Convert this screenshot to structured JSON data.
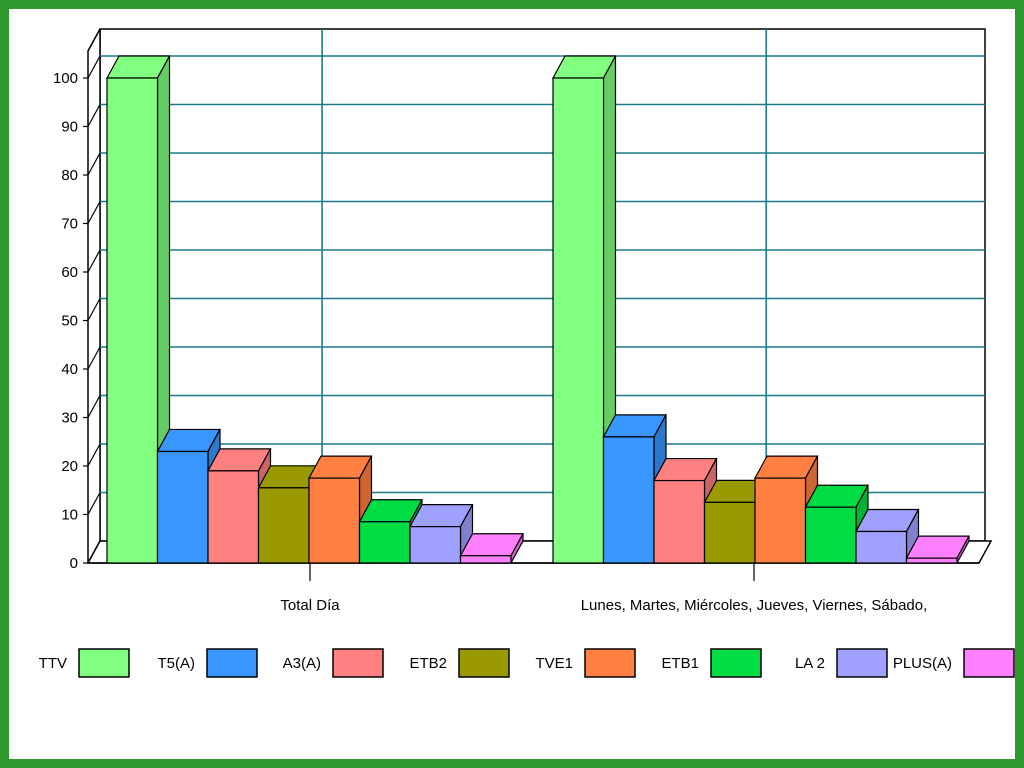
{
  "chart_data": {
    "type": "bar",
    "style": "3d-clustered",
    "categories": [
      "Total Día",
      "Lunes, Martes, Miércoles, Jueves, Viernes, Sábado,"
    ],
    "series": [
      {
        "name": "TTV",
        "color": "#80ff80",
        "values": [
          100,
          100
        ]
      },
      {
        "name": "T5(A)",
        "color": "#3a96ff",
        "values": [
          23,
          26
        ]
      },
      {
        "name": "A3(A)",
        "color": "#ff8080",
        "values": [
          19,
          17
        ]
      },
      {
        "name": "ETB2",
        "color": "#999900",
        "values": [
          15.5,
          12.5
        ]
      },
      {
        "name": "TVE1",
        "color": "#ff8040",
        "values": [
          17.5,
          17.5
        ]
      },
      {
        "name": "ETB1",
        "color": "#00dd44",
        "values": [
          8.5,
          11.5
        ]
      },
      {
        "name": "LA 2",
        "color": "#a0a0ff",
        "values": [
          7.5,
          6.5
        ]
      },
      {
        "name": "PLUS(A)",
        "color": "#ff80ff",
        "values": [
          1.5,
          1
        ]
      }
    ],
    "yticks": [
      0,
      10,
      20,
      30,
      40,
      50,
      60,
      70,
      80,
      90,
      100
    ],
    "ylim": [
      0,
      100
    ],
    "grid": true,
    "legend_position": "bottom"
  }
}
